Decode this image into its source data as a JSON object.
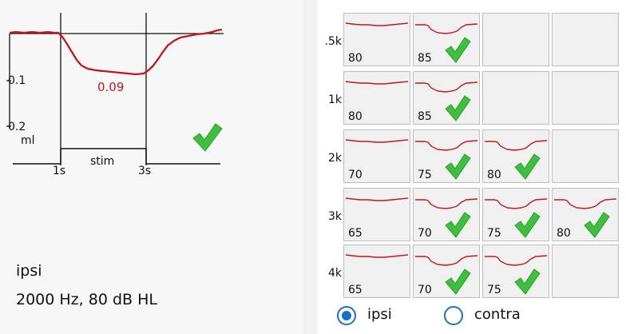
{
  "main_graph": {
    "value": "0.09",
    "y_ticks": [
      "0.1",
      "0.2"
    ],
    "y_unit": "ml",
    "x_ticks": [
      "1s",
      "3s"
    ],
    "stim_label": "stim",
    "trace_color": "#c0161c",
    "check": true
  },
  "info": {
    "line1": "ipsi",
    "line2": "2000 Hz, 80 dB HL"
  },
  "grid": {
    "rows": [
      {
        "label": ".5k",
        "cells": [
          {
            "value": "80",
            "check": false
          },
          {
            "value": "85",
            "check": true
          },
          null,
          null
        ]
      },
      {
        "label": "1k",
        "cells": [
          {
            "value": "80",
            "check": false
          },
          {
            "value": "85",
            "check": true
          },
          null,
          null
        ]
      },
      {
        "label": "2k",
        "cells": [
          {
            "value": "70",
            "check": false
          },
          {
            "value": "75",
            "check": true
          },
          {
            "value": "80",
            "check": true
          },
          null
        ]
      },
      {
        "label": "3k",
        "cells": [
          {
            "value": "65",
            "check": false
          },
          {
            "value": "70",
            "check": true
          },
          {
            "value": "75",
            "check": true
          },
          {
            "value": "80",
            "check": true
          }
        ]
      },
      {
        "label": "4k",
        "cells": [
          {
            "value": "65",
            "check": false
          },
          {
            "value": "70",
            "check": true
          },
          {
            "value": "75",
            "check": true
          },
          null
        ]
      }
    ]
  },
  "mode": {
    "options": [
      {
        "label": "ipsi",
        "selected": true
      },
      {
        "label": "contra",
        "selected": false
      }
    ]
  },
  "colors": {
    "trace": "#c0161c",
    "check_green": "#3fbf3f",
    "radio_blue": "#1e6fbf"
  }
}
